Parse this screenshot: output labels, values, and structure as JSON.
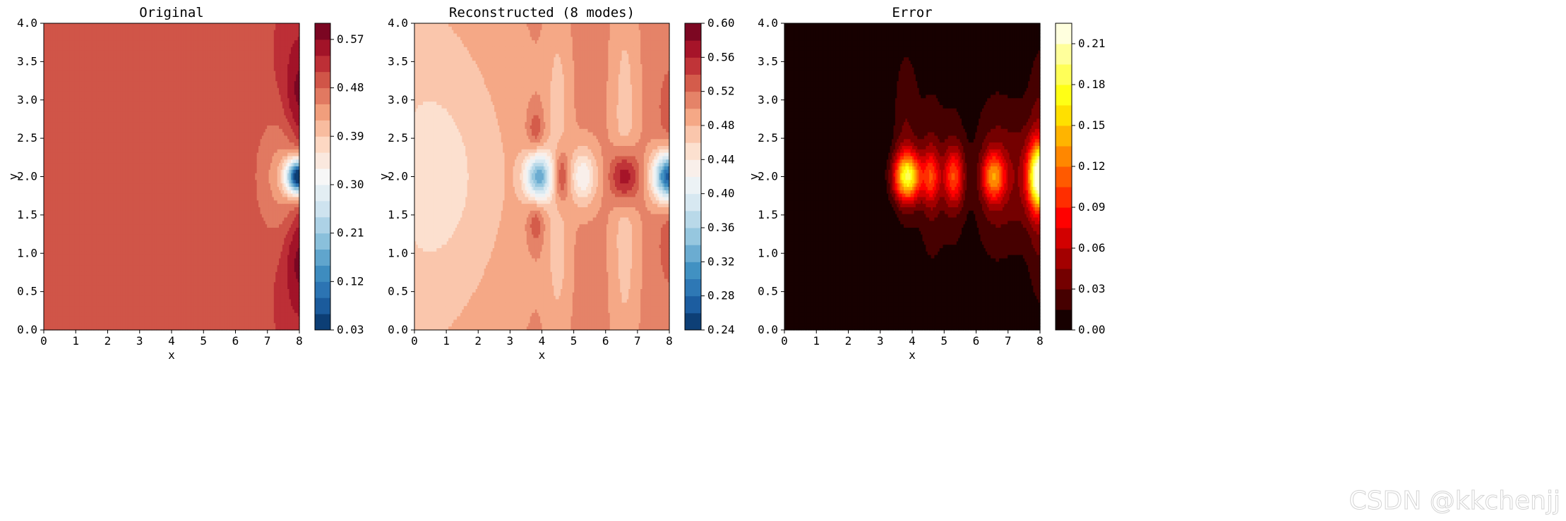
{
  "watermark": "CSDN @kkchenjj",
  "chart_data": [
    {
      "type": "heatmap",
      "title": "Original",
      "xlabel": "x",
      "ylabel": "y",
      "xlim": [
        0,
        8
      ],
      "ylim": [
        0,
        4
      ],
      "xticks": [
        "0",
        "1",
        "2",
        "3",
        "4",
        "5",
        "6",
        "7",
        "8"
      ],
      "yticks": [
        "0.0",
        "0.5",
        "1.0",
        "1.5",
        "2.0",
        "2.5",
        "3.0",
        "3.5",
        "4.0"
      ],
      "colormap": "RdBu_r",
      "colorbar": {
        "min": 0.03,
        "max": 0.6,
        "levels": 19,
        "ticks": [
          "0.03",
          "0.12",
          "0.21",
          "0.30",
          "0.39",
          "0.48",
          "0.57"
        ],
        "tick_values": [
          0.03,
          0.12,
          0.21,
          0.3,
          0.39,
          0.48,
          0.57
        ]
      },
      "background_value": 0.5,
      "features": [
        {
          "x": 8.0,
          "y": 2.0,
          "sx": 0.28,
          "sy": 0.16,
          "amp": -0.47
        },
        {
          "x": 7.5,
          "y": 2.0,
          "sx": 0.55,
          "sy": 0.55,
          "amp": -0.07
        },
        {
          "x": 8.0,
          "y": 3.0,
          "sx": 0.3,
          "sy": 0.45,
          "amp": 0.06
        },
        {
          "x": 8.0,
          "y": 1.0,
          "sx": 0.3,
          "sy": 0.45,
          "amp": 0.06
        },
        {
          "x": 8.0,
          "y": 3.5,
          "sx": 0.55,
          "sy": 0.8,
          "amp": 0.03
        },
        {
          "x": 8.0,
          "y": 0.5,
          "sx": 0.55,
          "sy": 0.8,
          "amp": 0.03
        }
      ]
    },
    {
      "type": "heatmap",
      "title": "Reconstructed (8 modes)",
      "xlabel": "x",
      "ylabel": "y",
      "xlim": [
        0,
        8
      ],
      "ylim": [
        0,
        4
      ],
      "xticks": [
        "0",
        "1",
        "2",
        "3",
        "4",
        "5",
        "6",
        "7",
        "8"
      ],
      "yticks": [
        "0.0",
        "0.5",
        "1.0",
        "1.5",
        "2.0",
        "2.5",
        "3.0",
        "3.5",
        "4.0"
      ],
      "colormap": "RdBu_r",
      "colorbar": {
        "min": 0.24,
        "max": 0.6,
        "levels": 18,
        "ticks": [
          "0.24",
          "0.28",
          "0.32",
          "0.36",
          "0.40",
          "0.44",
          "0.48",
          "0.52",
          "0.56",
          "0.60"
        ],
        "tick_values": [
          0.24,
          0.28,
          0.32,
          0.36,
          0.4,
          0.44,
          0.48,
          0.52,
          0.56,
          0.6
        ]
      },
      "background_value": 0.505,
      "features": [
        {
          "x": 0.0,
          "y": 2.0,
          "sx": 1.6,
          "sy": 2.2,
          "amp": -0.035
        },
        {
          "x": 1.5,
          "y": 2.0,
          "sx": 1.6,
          "sy": 1.2,
          "amp": -0.025
        },
        {
          "x": 3.9,
          "y": 2.0,
          "sx": 0.3,
          "sy": 0.22,
          "amp": -0.17
        },
        {
          "x": 4.6,
          "y": 2.0,
          "sx": 0.18,
          "sy": 0.25,
          "amp": 0.07
        },
        {
          "x": 5.3,
          "y": 2.0,
          "sx": 0.3,
          "sy": 0.25,
          "amp": -0.08
        },
        {
          "x": 6.6,
          "y": 2.0,
          "sx": 0.3,
          "sy": 0.25,
          "amp": 0.1
        },
        {
          "x": 8.0,
          "y": 2.0,
          "sx": 0.35,
          "sy": 0.22,
          "amp": -0.24
        },
        {
          "x": 3.8,
          "y": 2.6,
          "sx": 0.18,
          "sy": 0.22,
          "amp": 0.04
        },
        {
          "x": 3.8,
          "y": 1.4,
          "sx": 0.18,
          "sy": 0.22,
          "amp": 0.04
        },
        {
          "x": 4.5,
          "y": 3.0,
          "sx": 0.25,
          "sy": 0.8,
          "amp": -0.03
        },
        {
          "x": 4.5,
          "y": 1.0,
          "sx": 0.25,
          "sy": 0.8,
          "amp": -0.03
        },
        {
          "x": 6.6,
          "y": 3.0,
          "sx": 0.28,
          "sy": 1.0,
          "amp": -0.03
        },
        {
          "x": 6.6,
          "y": 1.0,
          "sx": 0.28,
          "sy": 1.0,
          "amp": -0.03
        },
        {
          "x": 8.0,
          "y": 2.9,
          "sx": 0.25,
          "sy": 0.4,
          "amp": 0.03
        },
        {
          "x": 8.0,
          "y": 1.1,
          "sx": 0.25,
          "sy": 0.4,
          "amp": 0.03
        }
      ]
    },
    {
      "type": "heatmap",
      "title": "Error",
      "xlabel": "x",
      "ylabel": "y",
      "xlim": [
        0,
        8
      ],
      "ylim": [
        0,
        4
      ],
      "xticks": [
        "0",
        "1",
        "2",
        "3",
        "4",
        "5",
        "6",
        "7",
        "8"
      ],
      "yticks": [
        "0.0",
        "0.5",
        "1.0",
        "1.5",
        "2.0",
        "2.5",
        "3.0",
        "3.5",
        "4.0"
      ],
      "colormap": "hot",
      "colorbar": {
        "min": 0.0,
        "max": 0.225,
        "levels": 15,
        "ticks": [
          "0.00",
          "0.03",
          "0.06",
          "0.09",
          "0.12",
          "0.15",
          "0.18",
          "0.21"
        ],
        "tick_values": [
          0.0,
          0.03,
          0.06,
          0.09,
          0.12,
          0.15,
          0.18,
          0.21
        ]
      },
      "background_value": 0.0,
      "features": [
        {
          "x": 3.85,
          "y": 2.0,
          "sx": 0.3,
          "sy": 0.22,
          "amp": 0.16
        },
        {
          "x": 4.6,
          "y": 2.0,
          "sx": 0.18,
          "sy": 0.25,
          "amp": 0.07
        },
        {
          "x": 5.3,
          "y": 2.0,
          "sx": 0.22,
          "sy": 0.25,
          "amp": 0.08
        },
        {
          "x": 6.55,
          "y": 2.0,
          "sx": 0.25,
          "sy": 0.22,
          "amp": 0.1
        },
        {
          "x": 8.0,
          "y": 2.0,
          "sx": 0.25,
          "sy": 0.3,
          "amp": 0.22
        },
        {
          "x": 7.5,
          "y": 2.0,
          "sx": 0.6,
          "sy": 0.7,
          "amp": 0.035
        },
        {
          "x": 3.8,
          "y": 2.5,
          "sx": 0.3,
          "sy": 0.9,
          "amp": 0.03
        },
        {
          "x": 4.6,
          "y": 2.0,
          "sx": 0.3,
          "sy": 0.9,
          "amp": 0.028
        },
        {
          "x": 5.3,
          "y": 2.0,
          "sx": 0.3,
          "sy": 0.8,
          "amp": 0.025
        },
        {
          "x": 6.5,
          "y": 2.0,
          "sx": 0.45,
          "sy": 0.8,
          "amp": 0.03
        },
        {
          "x": 8.0,
          "y": 3.0,
          "sx": 0.25,
          "sy": 0.7,
          "amp": 0.02
        },
        {
          "x": 8.0,
          "y": 1.0,
          "sx": 0.25,
          "sy": 0.7,
          "amp": 0.02
        }
      ]
    }
  ]
}
